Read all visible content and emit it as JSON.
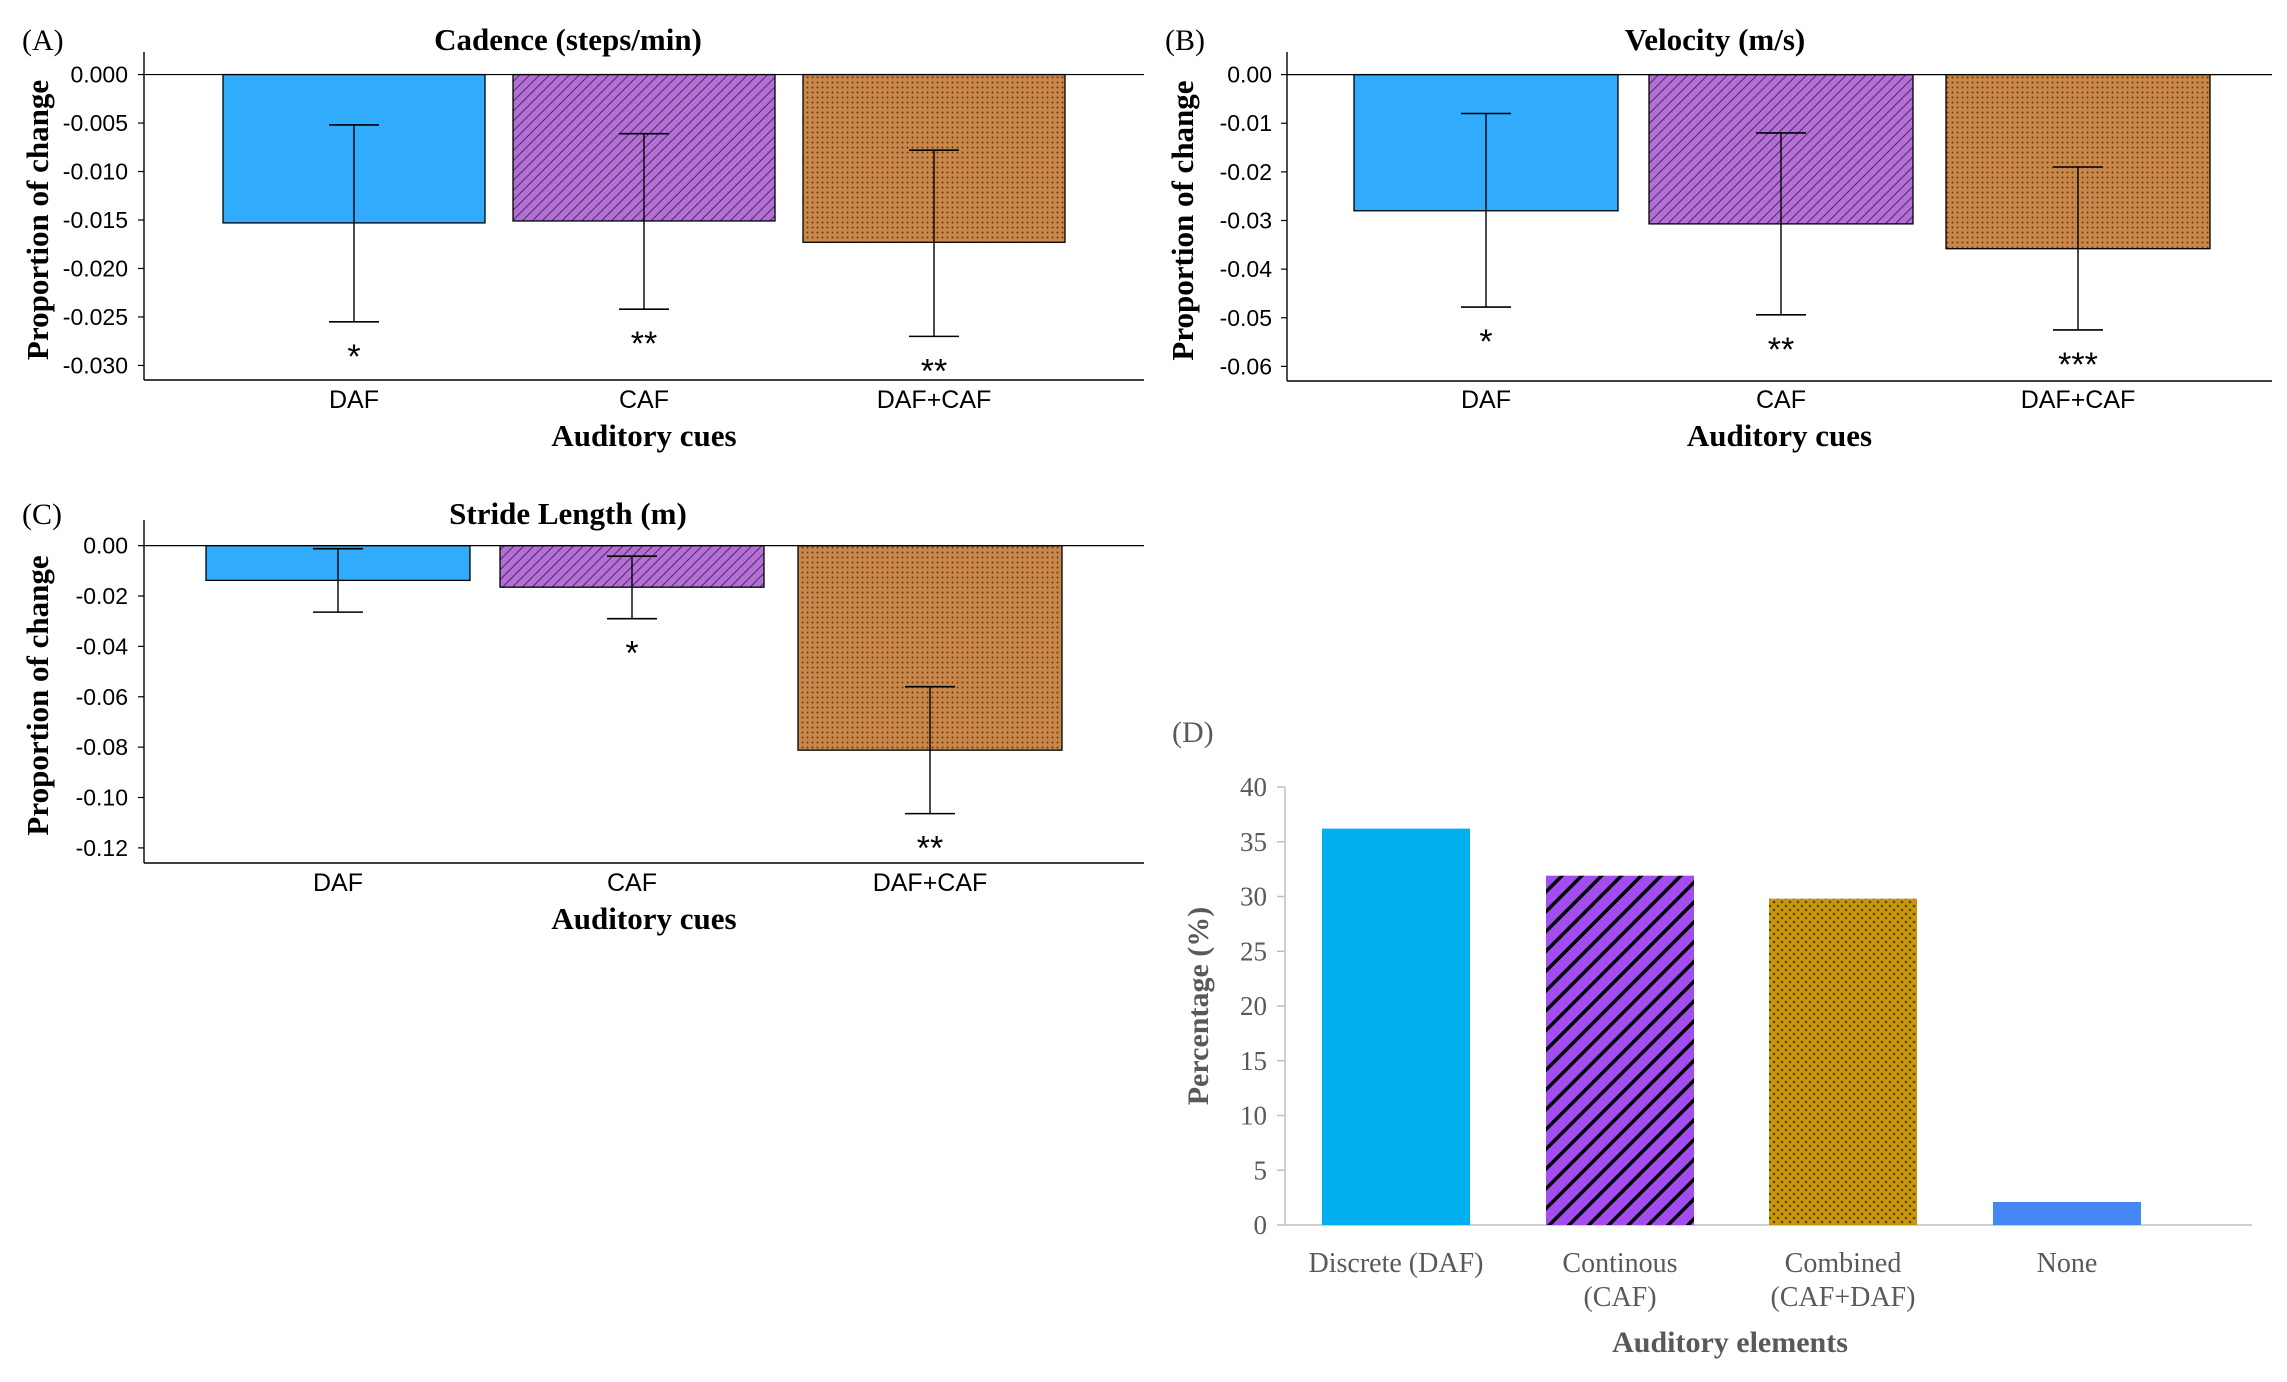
{
  "figure": {
    "colors": {
      "daf": "#31abfb",
      "caf": "#b36fd5",
      "caf_hatch": "#4b2a5f",
      "combined": "#c9874a",
      "combined_dots": "#6a3a16",
      "d_discrete": "#00b0ef",
      "d_continuous": "#a34cf0",
      "d_combined": "#c8960a",
      "d_none": "#4587f4"
    }
  },
  "chart_data": [
    {
      "panel": "(A)",
      "type": "bar",
      "title": "Cadence (steps/min)",
      "xlabel": "Auditory cues",
      "ylabel": "Proportion of change",
      "categories": [
        "DAF",
        "CAF",
        "DAF+CAF"
      ],
      "values": [
        -0.0153,
        -0.0151,
        -0.0173
      ],
      "err_high": [
        -0.0052,
        -0.0061,
        -0.0078
      ],
      "err_low": [
        -0.0255,
        -0.0242,
        -0.027
      ],
      "significance": [
        "*",
        "**",
        "**"
      ],
      "ylim": [
        -0.0315,
        0.0015
      ],
      "yticks": [
        0.0,
        -0.005,
        -0.01,
        -0.015,
        -0.02,
        -0.025,
        -0.03
      ],
      "ytick_labels": [
        "0.000",
        "-0.005",
        "-0.010",
        "-0.015",
        "-0.020",
        "-0.025",
        "-0.030"
      ]
    },
    {
      "panel": "(B)",
      "type": "bar",
      "title": "Velocity (m/s)",
      "xlabel": "Auditory cues",
      "ylabel": "Proportion of change",
      "categories": [
        "DAF",
        "CAF",
        "DAF+CAF"
      ],
      "values": [
        -0.028,
        -0.0307,
        -0.0358
      ],
      "err_high": [
        -0.008,
        -0.012,
        -0.019
      ],
      "err_low": [
        -0.0478,
        -0.0494,
        -0.0525
      ],
      "significance": [
        "*",
        "**",
        "***"
      ],
      "ylim": [
        -0.063,
        0.003
      ],
      "yticks": [
        0.0,
        -0.01,
        -0.02,
        -0.03,
        -0.04,
        -0.05,
        -0.06
      ],
      "ytick_labels": [
        "0.00",
        "-0.01",
        "-0.02",
        "-0.03",
        "-0.04",
        "-0.05",
        "-0.06"
      ]
    },
    {
      "panel": "(C)",
      "type": "bar",
      "title": "Stride Length (m)",
      "xlabel": "Auditory cues",
      "ylabel": "Proportion of change",
      "categories": [
        "DAF",
        "CAF",
        "DAF+CAF"
      ],
      "values": [
        -0.0138,
        -0.0165,
        -0.0812
      ],
      "err_high": [
        -0.0012,
        -0.0042,
        -0.056
      ],
      "err_low": [
        -0.0264,
        -0.029,
        -0.1064
      ],
      "significance": [
        "",
        "*",
        "**"
      ],
      "ylim": [
        -0.126,
        0.007
      ],
      "yticks": [
        0.0,
        -0.02,
        -0.04,
        -0.06,
        -0.08,
        -0.1,
        -0.12
      ],
      "ytick_labels": [
        "0.00",
        "-0.02",
        "-0.04",
        "-0.06",
        "-0.08",
        "-0.10",
        "-0.12"
      ]
    },
    {
      "panel": "(D)",
      "type": "bar",
      "title": "",
      "xlabel": "Auditory elements",
      "ylabel": "Percentage (%)",
      "categories": [
        [
          "Discrete (DAF)"
        ],
        [
          "Continous",
          "(CAF)"
        ],
        [
          "Combined",
          "(CAF+DAF)"
        ],
        [
          "None"
        ]
      ],
      "values": [
        36.2,
        31.9,
        29.8,
        2.1
      ],
      "ylim": [
        0,
        40
      ],
      "yticks": [
        0,
        5,
        10,
        15,
        20,
        25,
        30,
        35,
        40
      ],
      "ytick_labels": [
        "0",
        "5",
        "10",
        "15",
        "20",
        "25",
        "30",
        "35",
        "40"
      ]
    }
  ]
}
